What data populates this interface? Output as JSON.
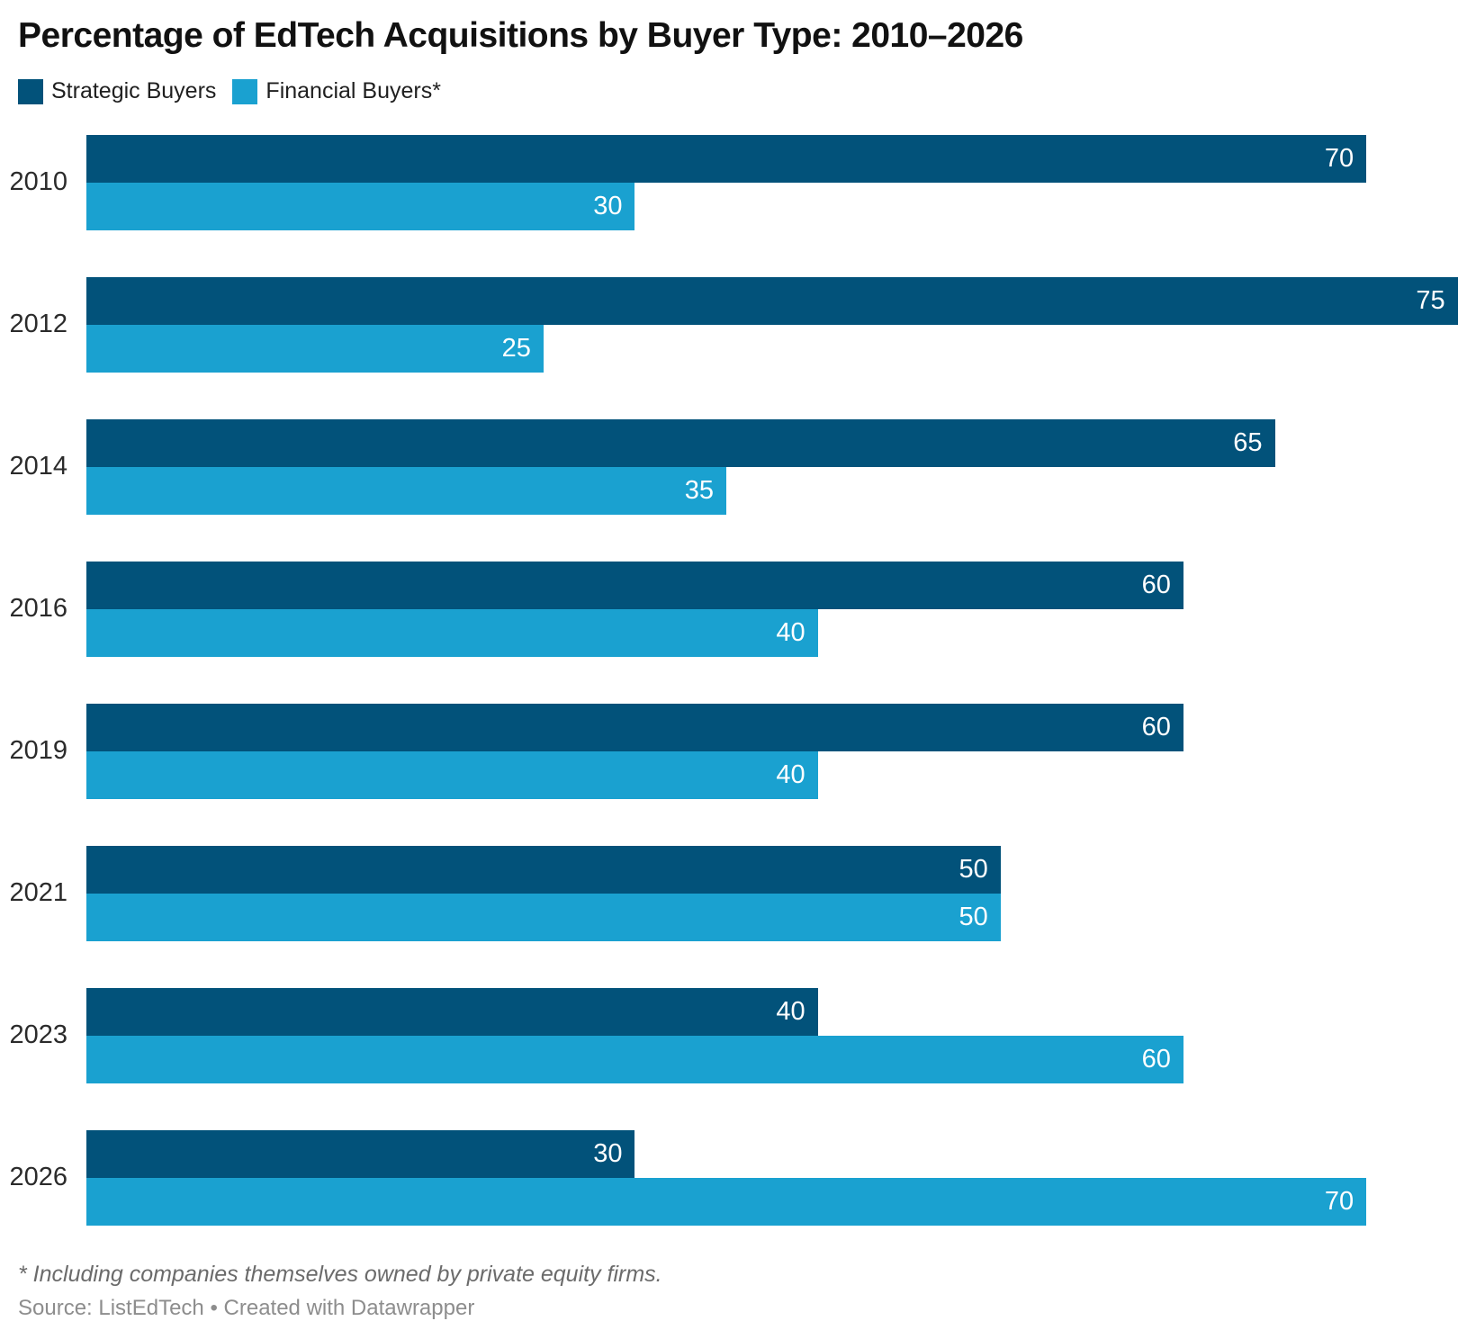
{
  "header": {
    "title": "Percentage of EdTech Acquisitions by Buyer Type: 2010–2026"
  },
  "legend": {
    "items": [
      {
        "label": "Strategic Buyers",
        "color": "#02527a"
      },
      {
        "label": "Financial Buyers*",
        "color": "#1aa1d0"
      }
    ]
  },
  "chart_data": {
    "type": "bar",
    "orientation": "horizontal",
    "title": "Percentage of EdTech Acquisitions by Buyer Type: 2010–2026",
    "categories": [
      "2010",
      "2012",
      "2014",
      "2016",
      "2019",
      "2021",
      "2023",
      "2026"
    ],
    "series": [
      {
        "name": "Strategic Buyers",
        "color": "#02527a",
        "values": [
          70,
          75,
          65,
          60,
          60,
          50,
          40,
          30
        ]
      },
      {
        "name": "Financial Buyers*",
        "color": "#1aa1d0",
        "values": [
          30,
          25,
          35,
          40,
          40,
          50,
          60,
          70
        ]
      }
    ],
    "value_labels_shown": true,
    "xlim": [
      0,
      76
    ],
    "grid": false,
    "legend_position": "top"
  },
  "footer": {
    "note": "* Including companies themselves owned by private equity firms.",
    "source": "Source: ListEdTech • Created with Datawrapper"
  }
}
